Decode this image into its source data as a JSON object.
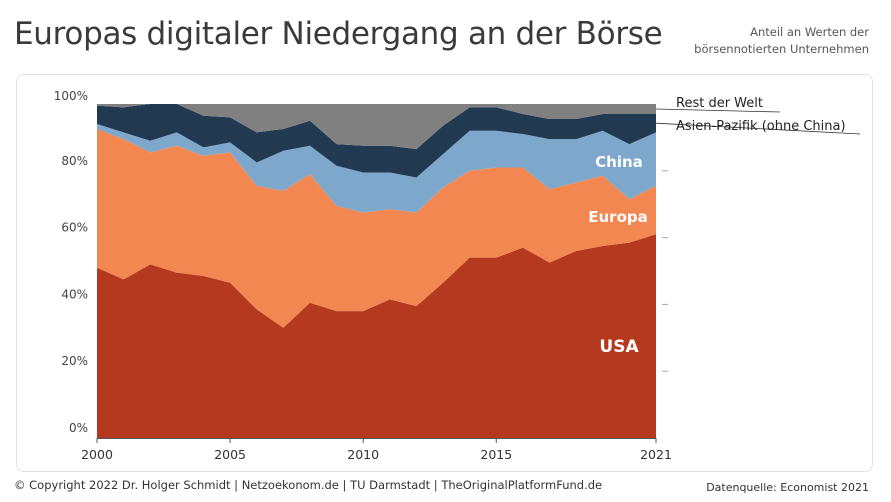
{
  "header": {
    "title": "Europas digitaler Niedergang an der Börse",
    "subtitle_line1": "Anteil an Werten der",
    "subtitle_line2": "börsennotierten Unternehmen"
  },
  "footer": {
    "copyright": "© Copyright 2022 Dr. Holger Schmidt | Netzoekonom.de | TU Darmstadt | TheOriginalPlatformFund.de",
    "source": "Datenquelle: Economist 2021"
  },
  "chart_data": {
    "type": "area",
    "stacked": true,
    "x": [
      2000,
      2001,
      2002,
      2003,
      2004,
      2005,
      2006,
      2007,
      2008,
      2009,
      2010,
      2011,
      2012,
      2013,
      2014,
      2015,
      2016,
      2017,
      2018,
      2019,
      2020,
      2021
    ],
    "ylim": [
      0,
      100
    ],
    "yticks": [
      0,
      20,
      40,
      60,
      80,
      100
    ],
    "ytick_labels": [
      "0%",
      "20%",
      "40%",
      "60%",
      "80%",
      "100%"
    ],
    "xticks": [
      2000,
      2005,
      2010,
      2015,
      2021
    ],
    "xtick_labels": [
      "2000",
      "2005",
      "2010",
      "2015",
      "2021"
    ],
    "series": [
      {
        "name": "USA",
        "color": "#B5391E",
        "values": [
          51,
          47.5,
          52,
          49.5,
          48.5,
          46.5,
          38.5,
          33,
          40.5,
          38,
          38,
          41.5,
          39.5,
          46.5,
          54,
          54,
          57,
          52.5,
          56,
          57.5,
          58.5,
          61
        ]
      },
      {
        "name": "Europa",
        "color": "#F28752",
        "values": [
          41.5,
          42,
          33.5,
          38,
          36,
          39,
          37,
          41,
          38.5,
          31.5,
          29.5,
          27,
          28,
          28.5,
          26,
          27,
          24,
          22,
          20.5,
          21,
          13,
          14.5
        ]
      },
      {
        "name": "China",
        "color": "#7EA8CB",
        "values": [
          1.5,
          2,
          3.5,
          4,
          2.5,
          3,
          7,
          12,
          8.5,
          12,
          12,
          11,
          10.5,
          10,
          12,
          11,
          10,
          15,
          13,
          13.5,
          16.5,
          16
        ]
      },
      {
        "name": "Asien-Pazifik (ohne China)",
        "color": "#213A52",
        "values": [
          5.5,
          7.5,
          11,
          8.5,
          9.5,
          7.5,
          9,
          6.5,
          7.5,
          6.5,
          8,
          8,
          8.5,
          8.5,
          7,
          7,
          6,
          6,
          6,
          5,
          9,
          5.5
        ]
      },
      {
        "name": "Rest der Welt",
        "color": "#808080",
        "values": [
          0.5,
          1,
          0,
          0,
          3.5,
          4,
          8.5,
          7.5,
          5,
          12,
          12.5,
          12.5,
          13.5,
          6.5,
          1,
          1,
          3,
          4.5,
          4.5,
          3,
          3,
          3
        ]
      }
    ],
    "labels": {
      "usa": "USA",
      "europa": "Europa",
      "china": "China",
      "asien": "Asien-Pazifik (ohne China)",
      "rest": "Rest der Welt"
    }
  }
}
